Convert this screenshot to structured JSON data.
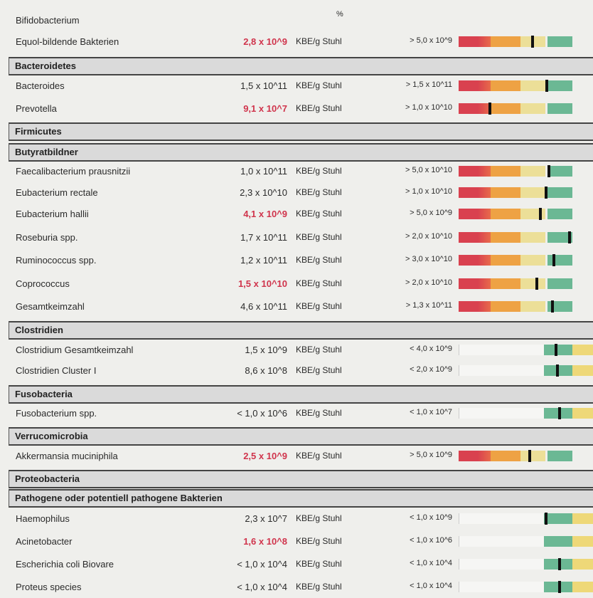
{
  "colors": {
    "low_value": "#d0344c",
    "red": "#d9414f",
    "orange": "#eea244",
    "yellow": "#ecdf98",
    "green": "#6bb894",
    "pale_yellow": "#eed878"
  },
  "top": {
    "name": "Bifidobacterium",
    "unit": "%"
  },
  "rows": [
    {
      "type": "data",
      "name": "Equol-bildende Bakterien",
      "value": "2,8 x 10^9",
      "low": true,
      "unit": "KBE/g Stuhl",
      "ref": "> 5,0 x 10^9",
      "scale": "min",
      "marker": 0.55
    },
    {
      "type": "header",
      "name": "Bacteroidetes"
    },
    {
      "type": "data",
      "name": "Bacteroides",
      "value": "1,5 x 10^11",
      "low": false,
      "unit": "KBE/g Stuhl",
      "ref": "> 1,5 x 10^11",
      "scale": "min",
      "marker": 0.656
    },
    {
      "type": "data",
      "name": "Prevotella",
      "value": "9,1 x 10^7",
      "low": true,
      "unit": "KBE/g Stuhl",
      "ref": "> 1,0 x 10^10",
      "scale": "min",
      "marker": 0.233
    },
    {
      "type": "header",
      "name": "Firmicutes"
    },
    {
      "type": "header",
      "name": "Butyratbildner"
    },
    {
      "type": "data",
      "name": "Faecalibacterium prausnitzii",
      "value": "1,0 x 10^11",
      "low": false,
      "unit": "KBE/g Stuhl",
      "ref": "> 5,0 x 10^10",
      "scale": "min",
      "marker": 0.672
    },
    {
      "type": "data",
      "name": "Eubacterium rectale",
      "value": "2,3 x 10^10",
      "low": false,
      "unit": "KBE/g Stuhl",
      "ref": "> 1,0 x 10^10",
      "scale": "min",
      "marker": 0.651
    },
    {
      "type": "data",
      "name": "Eubacterium hallii",
      "value": "4,1 x 10^9",
      "low": true,
      "unit": "KBE/g Stuhl",
      "ref": "> 5,0 x 10^9",
      "scale": "min",
      "marker": 0.608
    },
    {
      "type": "data",
      "name": "Roseburia spp.",
      "value": "1,7 x 10^11",
      "low": false,
      "unit": "KBE/g Stuhl",
      "ref": "> 2,0 x 10^10",
      "scale": "min",
      "marker": 0.825
    },
    {
      "type": "data",
      "name": "Ruminococcus spp.",
      "value": "1,2 x 10^11",
      "low": false,
      "unit": "KBE/g Stuhl",
      "ref": "> 3,0 x 10^10",
      "scale": "min",
      "marker": 0.709
    },
    {
      "type": "data",
      "name": "Coprococcus",
      "value": "1,5 x 10^10",
      "low": true,
      "unit": "KBE/g Stuhl",
      "ref": "> 2,0 x 10^10",
      "scale": "min",
      "marker": 0.582
    },
    {
      "type": "data",
      "name": "Gesamtkeimzahl",
      "value": "4,6 x 10^11",
      "low": false,
      "unit": "KBE/g Stuhl",
      "ref": "> 1,3 x 10^11",
      "scale": "min",
      "marker": 0.698
    },
    {
      "type": "header",
      "name": "Clostridien"
    },
    {
      "type": "data",
      "name": "Clostridium Gesamtkeimzahl",
      "value": "1,5 x 10^9",
      "low": false,
      "unit": "KBE/g Stuhl",
      "ref": "< 4,0 x 10^9",
      "scale": "max",
      "marker": 0.725
    },
    {
      "type": "data",
      "name": "Clostridien Cluster I",
      "value": "8,6 x 10^8",
      "low": false,
      "unit": "KBE/g Stuhl",
      "ref": "< 2,0 x 10^9",
      "scale": "max",
      "marker": 0.735
    },
    {
      "type": "header",
      "name": "Fusobacteria"
    },
    {
      "type": "data",
      "name": "Fusobacterium spp.",
      "value": "< 1,0 x 10^6",
      "low": false,
      "unit": "KBE/g Stuhl",
      "ref": "< 1,0 x 10^7",
      "scale": "max",
      "marker": 0.751
    },
    {
      "type": "header",
      "name": "Verrucomicrobia"
    },
    {
      "type": "data",
      "name": "Akkermansia muciniphila",
      "value": "2,5 x 10^9",
      "low": true,
      "unit": "KBE/g Stuhl",
      "ref": "> 5,0 x 10^9",
      "scale": "min",
      "marker": 0.529
    },
    {
      "type": "header",
      "name": "Proteobacteria"
    },
    {
      "type": "header",
      "name": "Pathogene oder potentiell pathogene Bakterien"
    },
    {
      "type": "data",
      "name": "Haemophilus",
      "value": "2,3 x 10^7",
      "low": false,
      "unit": "KBE/g Stuhl",
      "ref": "< 1,0 x 10^9",
      "scale": "max",
      "marker": 0.651
    },
    {
      "type": "data",
      "name": "Acinetobacter",
      "value": "1,6 x 10^8",
      "low": true,
      "unit": "KBE/g Stuhl",
      "ref": "< 1,0 x 10^6",
      "scale": "max",
      "marker": null
    },
    {
      "type": "data",
      "name": "Escherichia coli Biovare",
      "value": "< 1,0 x 10^4",
      "low": false,
      "unit": "KBE/g Stuhl",
      "ref": "< 1,0 x 10^4",
      "scale": "max",
      "marker": 0.751
    },
    {
      "type": "data",
      "name": "Proteus species",
      "value": "< 1,0 x 10^4",
      "low": false,
      "unit": "KBE/g Stuhl",
      "ref": "< 1,0 x 10^4",
      "scale": "max",
      "marker": 0.751
    }
  ]
}
